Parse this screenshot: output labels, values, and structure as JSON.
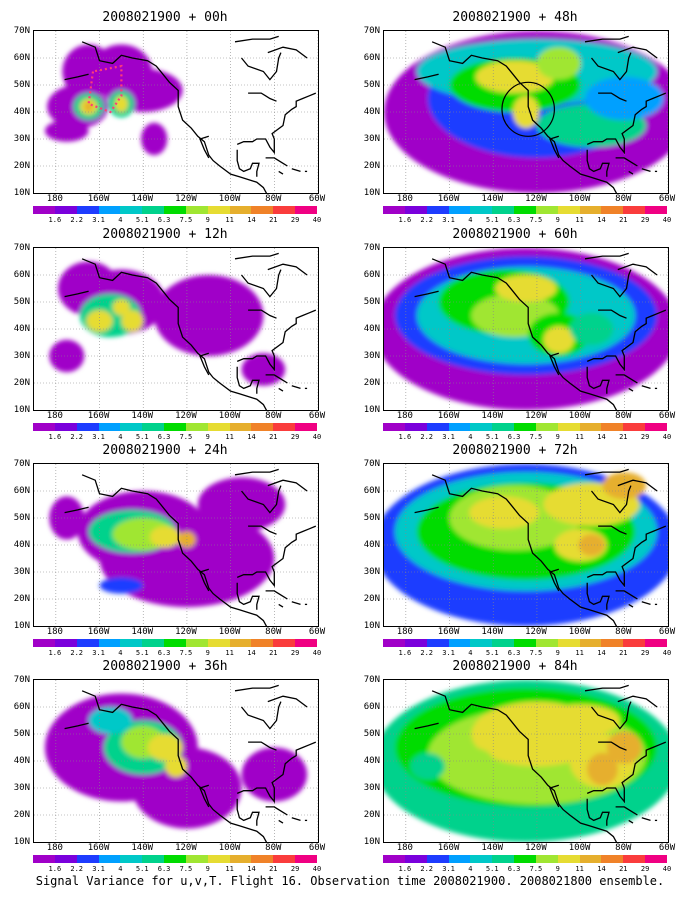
{
  "caption": "Signal Variance for u,v,T. Flight 16. Observation time 2008021900. 2008021800 ensemble.",
  "lat_labels": [
    "70N",
    "60N",
    "50N",
    "40N",
    "30N",
    "20N",
    "10N"
  ],
  "lon_labels": [
    "180",
    "160W",
    "140W",
    "120W",
    "100W",
    "80W",
    "60W"
  ],
  "colorbar": {
    "labels": [
      "1.6",
      "2.2",
      "3.1",
      "4",
      "5.1",
      "6.3",
      "7.5",
      "9",
      "11",
      "14",
      "21",
      "29",
      "40"
    ],
    "colors": [
      "#ffffff",
      "#a000c8",
      "#7a00dc",
      "#1e3cff",
      "#00a0ff",
      "#00c8c8",
      "#00d28c",
      "#00dc00",
      "#a0e632",
      "#e6dc32",
      "#e6af2d",
      "#f08228",
      "#fa3c3c",
      "#f00082"
    ]
  },
  "panels": [
    {
      "title": "2008021900 + 00h"
    },
    {
      "title": "2008021900 + 48h"
    },
    {
      "title": "2008021900 + 12h"
    },
    {
      "title": "2008021900 + 60h"
    },
    {
      "title": "2008021900 + 24h"
    },
    {
      "title": "2008021900 + 72h"
    },
    {
      "title": "2008021900 + 36h"
    },
    {
      "title": "2008021900 + 84h"
    }
  ]
}
